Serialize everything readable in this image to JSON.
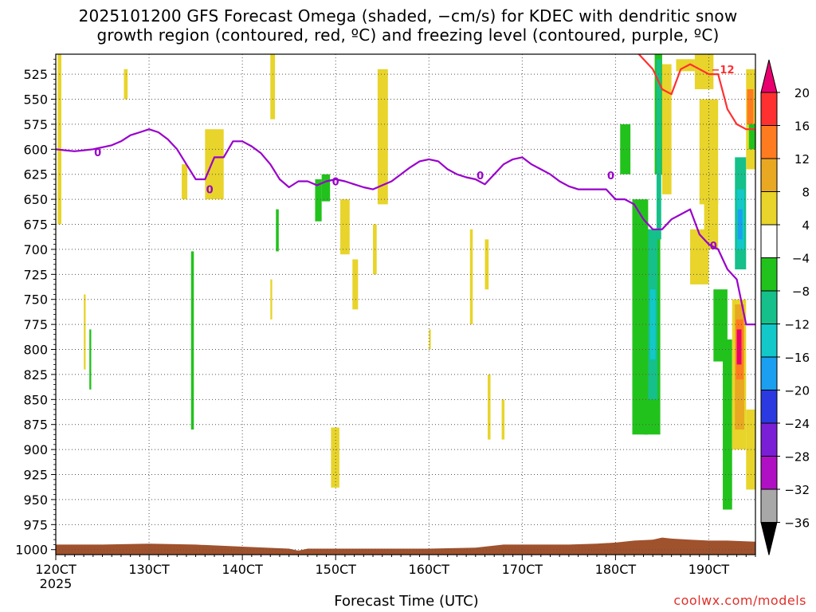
{
  "title_line1": "2025101200 GFS Forecast Omega (shaded, −cm/s) for KDEC with dendritic snow",
  "title_line2": "growth region (contoured, red, ºC) and freezing level (contoured, purple, ºC)",
  "xlabel": "Forecast Time (UTC)",
  "credit": "coolwx.com/models",
  "chart_data": {
    "type": "heatmap",
    "xlabel": "Forecast Time (UTC)",
    "ylabel": "",
    "x_hours_range": [
      0,
      75
    ],
    "y_pressure_range": [
      1005,
      505
    ],
    "x_ticks": [
      {
        "hour": 0,
        "label": "120CT",
        "sub": "2025"
      },
      {
        "hour": 10,
        "label": "130CT"
      },
      {
        "hour": 20,
        "label": "140CT"
      },
      {
        "hour": 30,
        "label": "150CT"
      },
      {
        "hour": 40,
        "label": "160CT"
      },
      {
        "hour": 50,
        "label": "170CT"
      },
      {
        "hour": 60,
        "label": "180CT"
      },
      {
        "hour": 70,
        "label": "190CT"
      }
    ],
    "y_ticks": [
      525,
      550,
      575,
      600,
      625,
      650,
      675,
      700,
      725,
      750,
      775,
      800,
      825,
      850,
      875,
      900,
      925,
      950,
      975,
      1000
    ],
    "grid": true,
    "colorbar": {
      "labels": [
        20,
        16,
        12,
        8,
        4,
        -4,
        -8,
        -12,
        -16,
        -20,
        -24,
        -28,
        -32,
        -36
      ],
      "colors": [
        "#e8006e",
        "#ff3030",
        "#ff7b1f",
        "#e8a821",
        "#e8d42a",
        "#ffffff",
        "#22c21c",
        "#15c08a",
        "#12c8c8",
        "#1b9ff0",
        "#2a3ae0",
        "#7a1fd6",
        "#b010c4",
        "#a8a8a8",
        "#000000"
      ]
    },
    "freezing_level": {
      "name": "0",
      "color": "#9900cc",
      "x": [
        0,
        1,
        2,
        3,
        4,
        5,
        6,
        7,
        8,
        9,
        10,
        11,
        12,
        13,
        14,
        15,
        16,
        17,
        18,
        19,
        20,
        21,
        22,
        23,
        24,
        25,
        26,
        27,
        28,
        29,
        30,
        31,
        32,
        33,
        34,
        35,
        36,
        37,
        38,
        39,
        40,
        41,
        42,
        43,
        44,
        45,
        46,
        47,
        48,
        49,
        50,
        51,
        52,
        53,
        54,
        55,
        56,
        57,
        58,
        59,
        60,
        61,
        62,
        63,
        64,
        65,
        66,
        67,
        68,
        69,
        70,
        71,
        72,
        73,
        74,
        75
      ],
      "y": [
        600,
        601,
        602,
        601,
        600,
        598,
        596,
        592,
        586,
        583,
        580,
        583,
        590,
        600,
        615,
        630,
        630,
        608,
        608,
        592,
        592,
        597,
        604,
        615,
        630,
        638,
        632,
        632,
        636,
        632,
        630,
        632,
        635,
        638,
        640,
        636,
        632,
        625,
        618,
        612,
        610,
        612,
        620,
        625,
        628,
        630,
        635,
        625,
        615,
        610,
        608,
        615,
        620,
        625,
        632,
        637,
        640,
        640,
        640,
        640,
        650,
        650,
        655,
        670,
        680,
        680,
        670,
        665,
        660,
        685,
        695,
        700,
        720,
        730,
        775,
        775
      ],
      "labels": [
        {
          "hour": 4.5,
          "p": 603,
          "text": "0"
        },
        {
          "hour": 16.5,
          "p": 640,
          "text": "0"
        },
        {
          "hour": 30,
          "p": 632,
          "text": "0"
        },
        {
          "hour": 45.5,
          "p": 626,
          "text": "0"
        },
        {
          "hour": 59.5,
          "p": 626,
          "text": "0"
        },
        {
          "hour": 70.5,
          "p": 696,
          "text": "0"
        }
      ]
    },
    "dgz_contour": {
      "name": "-12",
      "color": "#ff3030",
      "x": [
        62.5,
        63,
        64,
        65,
        66,
        67,
        68,
        69,
        70,
        71,
        72,
        73,
        74,
        75
      ],
      "y": [
        505,
        510,
        520,
        540,
        545,
        520,
        515,
        520,
        525,
        525,
        560,
        575,
        580,
        580
      ],
      "labels": [
        {
          "hour": 71.5,
          "p": 520,
          "text": "−12"
        }
      ]
    },
    "shaded_cells": [
      {
        "x0": 0.2,
        "x1": 0.6,
        "p0": 505,
        "p1": 675,
        "v": 4
      },
      {
        "x0": 7.3,
        "x1": 7.7,
        "p0": 520,
        "p1": 550,
        "v": 4
      },
      {
        "x0": 3.0,
        "x1": 3.2,
        "p0": 745,
        "p1": 820,
        "v": 4
      },
      {
        "x0": 3.6,
        "x1": 3.8,
        "p0": 780,
        "p1": 840,
        "v": -8
      },
      {
        "x0": 14.5,
        "x1": 14.8,
        "p0": 702,
        "p1": 880,
        "v": -8
      },
      {
        "x0": 13.5,
        "x1": 14.1,
        "p0": 615,
        "p1": 650,
        "v": 4
      },
      {
        "x0": 16.0,
        "x1": 18.0,
        "p0": 580,
        "p1": 650,
        "v": 4
      },
      {
        "x0": 23.0,
        "x1": 23.5,
        "p0": 505,
        "p1": 570,
        "v": 4
      },
      {
        "x0": 23.6,
        "x1": 23.9,
        "p0": 660,
        "p1": 702,
        "v": -8
      },
      {
        "x0": 23.0,
        "x1": 23.2,
        "p0": 730,
        "p1": 770,
        "v": 4
      },
      {
        "x0": 27.8,
        "x1": 28.5,
        "p0": 630,
        "p1": 672,
        "v": -8
      },
      {
        "x0": 28.5,
        "x1": 29.4,
        "p0": 625,
        "p1": 652,
        "v": -8
      },
      {
        "x0": 30.5,
        "x1": 31.5,
        "p0": 650,
        "p1": 705,
        "v": 4
      },
      {
        "x0": 31.8,
        "x1": 32.4,
        "p0": 710,
        "p1": 760,
        "v": 4
      },
      {
        "x0": 29.5,
        "x1": 30.4,
        "p0": 878,
        "p1": 938,
        "v": 4
      },
      {
        "x0": 34.0,
        "x1": 34.4,
        "p0": 675,
        "p1": 725,
        "v": 4
      },
      {
        "x0": 34.5,
        "x1": 35.6,
        "p0": 520,
        "p1": 655,
        "v": 4
      },
      {
        "x0": 40.0,
        "x1": 40.2,
        "p0": 780,
        "p1": 800,
        "v": 4
      },
      {
        "x0": 44.4,
        "x1": 44.7,
        "p0": 680,
        "p1": 775,
        "v": 4
      },
      {
        "x0": 46.0,
        "x1": 46.4,
        "p0": 690,
        "p1": 740,
        "v": 4
      },
      {
        "x0": 46.3,
        "x1": 46.6,
        "p0": 825,
        "p1": 890,
        "v": 4
      },
      {
        "x0": 47.8,
        "x1": 48.1,
        "p0": 850,
        "p1": 890,
        "v": 4
      },
      {
        "x0": 60.5,
        "x1": 61.6,
        "p0": 575,
        "p1": 625,
        "v": -8
      },
      {
        "x0": 61.8,
        "x1": 63.5,
        "p0": 650,
        "p1": 885,
        "v": -8
      },
      {
        "x0": 63.0,
        "x1": 64.8,
        "p0": 680,
        "p1": 885,
        "v": -8
      },
      {
        "x0": 63.5,
        "x1": 64.5,
        "p0": 680,
        "p1": 850,
        "v": -12
      },
      {
        "x0": 63.7,
        "x1": 64.3,
        "p0": 740,
        "p1": 810,
        "v": -16
      },
      {
        "x0": 64.2,
        "x1": 65.0,
        "p0": 505,
        "p1": 625,
        "v": -8
      },
      {
        "x0": 64.4,
        "x1": 64.9,
        "p0": 510,
        "p1": 690,
        "v": -12
      },
      {
        "x0": 65.0,
        "x1": 66.0,
        "p0": 515,
        "p1": 645,
        "v": 4
      },
      {
        "x0": 66.5,
        "x1": 68.5,
        "p0": 510,
        "p1": 522,
        "v": 4
      },
      {
        "x0": 68.5,
        "x1": 70.5,
        "p0": 505,
        "p1": 540,
        "v": 4
      },
      {
        "x0": 69.0,
        "x1": 71.0,
        "p0": 550,
        "p1": 655,
        "v": 4
      },
      {
        "x0": 68.0,
        "x1": 70.0,
        "p0": 680,
        "p1": 735,
        "v": 4
      },
      {
        "x0": 69.5,
        "x1": 71.0,
        "p0": 650,
        "p1": 700,
        "v": 4
      },
      {
        "x0": 70.5,
        "x1": 72.0,
        "p0": 740,
        "p1": 812,
        "v": -8
      },
      {
        "x0": 71.5,
        "x1": 72.5,
        "p0": 790,
        "p1": 960,
        "v": -8
      },
      {
        "x0": 72.8,
        "x1": 74.0,
        "p0": 608,
        "p1": 720,
        "v": -12
      },
      {
        "x0": 73.0,
        "x1": 73.8,
        "p0": 640,
        "p1": 700,
        "v": -16
      },
      {
        "x0": 73.1,
        "x1": 73.6,
        "p0": 660,
        "p1": 690,
        "v": -20
      },
      {
        "x0": 72.5,
        "x1": 74.0,
        "p0": 750,
        "p1": 900,
        "v": 4
      },
      {
        "x0": 72.8,
        "x1": 73.8,
        "p0": 755,
        "p1": 880,
        "v": 8
      },
      {
        "x0": 72.9,
        "x1": 73.7,
        "p0": 770,
        "p1": 830,
        "v": 12
      },
      {
        "x0": 73.0,
        "x1": 73.5,
        "p0": 780,
        "p1": 815,
        "v": 20
      },
      {
        "x0": 74.0,
        "x1": 75.0,
        "p0": 520,
        "p1": 620,
        "v": 4
      },
      {
        "x0": 74.1,
        "x1": 74.8,
        "p0": 540,
        "p1": 575,
        "v": 12
      },
      {
        "x0": 74.3,
        "x1": 75.0,
        "p0": 575,
        "p1": 600,
        "v": -8
      },
      {
        "x0": 74.0,
        "x1": 75.0,
        "p0": 860,
        "p1": 940,
        "v": 4
      }
    ],
    "terrain": {
      "color": "#a0522d",
      "x": [
        0,
        5,
        10,
        15,
        20,
        25,
        26,
        27,
        28,
        30,
        35,
        40,
        45,
        48,
        50,
        55,
        58,
        60,
        62,
        64,
        65,
        66,
        68,
        70,
        72,
        75
      ],
      "y": [
        995,
        995,
        994,
        995,
        997,
        999,
        1001,
        999,
        999,
        999,
        999,
        999,
        998,
        995,
        995,
        995,
        994,
        993,
        991,
        990,
        988,
        989,
        990,
        991,
        991,
        992
      ]
    }
  }
}
